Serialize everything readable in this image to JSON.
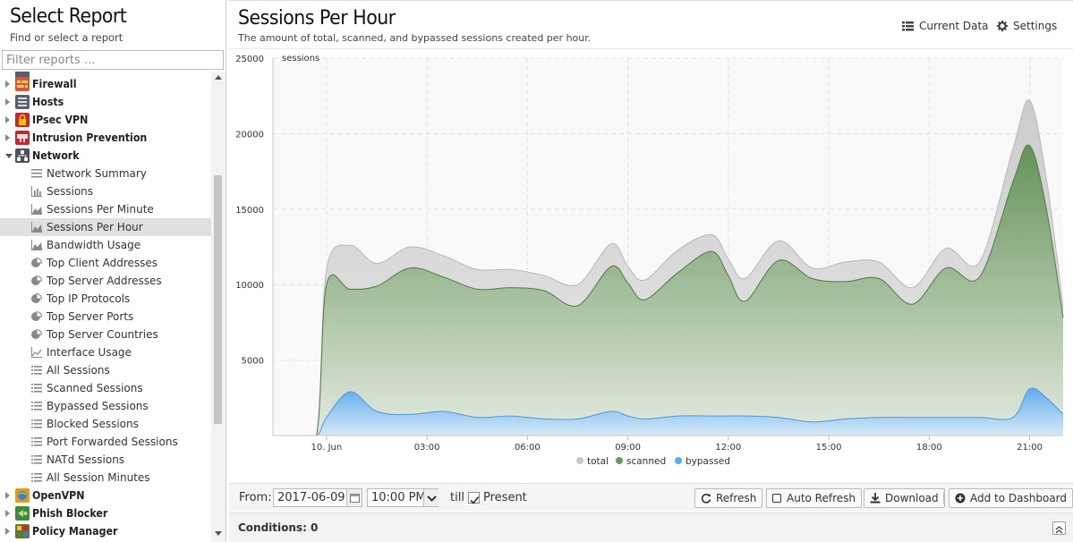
{
  "sidebar": {
    "title": "Select Report",
    "subtitle": "Find or select a report",
    "filter_placeholder": "Filter reports ...",
    "categories": [
      {
        "label": "Firewall",
        "icon": "firewall-icon",
        "color": "#d9582b"
      },
      {
        "label": "Hosts",
        "icon": "hosts-icon",
        "color": "#5b5f6b"
      },
      {
        "label": "IPsec VPN",
        "icon": "ipsec-lock-icon",
        "color": "#c8262e"
      },
      {
        "label": "Intrusion Prevention",
        "icon": "intrusion-prevention-icon",
        "color": "#c8262e"
      },
      {
        "label": "Network",
        "icon": "network-icon",
        "color": "#4a4f5c"
      }
    ],
    "network_reports": [
      {
        "label": "Network Summary",
        "icon": "summary-icon"
      },
      {
        "label": "Sessions",
        "icon": "bar-chart-icon"
      },
      {
        "label": "Sessions Per Minute",
        "icon": "area-chart-icon"
      },
      {
        "label": "Sessions Per Hour",
        "icon": "area-chart-icon",
        "selected": true
      },
      {
        "label": "Bandwidth Usage",
        "icon": "area-chart-icon"
      },
      {
        "label": "Top Client Addresses",
        "icon": "pie-chart-icon"
      },
      {
        "label": "Top Server Addresses",
        "icon": "pie-chart-icon"
      },
      {
        "label": "Top IP Protocols",
        "icon": "pie-chart-icon"
      },
      {
        "label": "Top Server Ports",
        "icon": "pie-chart-icon"
      },
      {
        "label": "Top Server Countries",
        "icon": "pie-chart-icon"
      },
      {
        "label": "Interface Usage",
        "icon": "line-chart-icon"
      },
      {
        "label": "All Sessions",
        "icon": "list-icon"
      },
      {
        "label": "Scanned Sessions",
        "icon": "list-icon"
      },
      {
        "label": "Bypassed Sessions",
        "icon": "list-icon"
      },
      {
        "label": "Blocked Sessions",
        "icon": "list-icon"
      },
      {
        "label": "Port Forwarded Sessions",
        "icon": "list-icon"
      },
      {
        "label": "NATd Sessions",
        "icon": "list-icon"
      },
      {
        "label": "All Session Minutes",
        "icon": "list-icon"
      }
    ],
    "more_categories": [
      {
        "label": "OpenVPN",
        "icon": "openvpn-icon",
        "color": "#e69a1c"
      },
      {
        "label": "Phish Blocker",
        "icon": "phish-blocker-icon",
        "color": "#3f8a3c"
      },
      {
        "label": "Policy Manager",
        "icon": "policy-manager-icon",
        "color": "#7a6d2a"
      }
    ]
  },
  "header": {
    "title": "Sessions Per Hour",
    "description": "The amount of total, scanned, and bypassed sessions created per hour.",
    "current_data_label": "Current Data",
    "settings_label": "Settings"
  },
  "chart_data": {
    "type": "area",
    "ylabel": "sessions",
    "ylim": [
      0,
      25000
    ],
    "yticks": [
      5000,
      10000,
      15000,
      20000,
      25000
    ],
    "xticks": [
      "10. Jun",
      "03:00",
      "06:00",
      "09:00",
      "12:00",
      "15:00",
      "18:00",
      "21:00"
    ],
    "xtick_hours": [
      0,
      3,
      6,
      9,
      12,
      15,
      18,
      21
    ],
    "xlim_hours": [
      -1.6,
      22.0
    ],
    "grid": true,
    "legend_position": "bottom",
    "x_hours": [
      -1.6,
      -1.0,
      -0.3,
      0.0,
      0.7,
      1.5,
      2.5,
      3.5,
      4.5,
      5.5,
      6.5,
      7.5,
      8.5,
      9.0,
      9.5,
      10.5,
      11.5,
      12.0,
      12.5,
      13.5,
      14.5,
      15.5,
      16.5,
      17.5,
      18.5,
      19.5,
      20.5,
      21.0,
      21.5,
      22.0
    ],
    "series": [
      {
        "name": "total",
        "color": "#c8c8c8",
        "values": [
          0,
          0,
          0,
          11000,
          12600,
          11400,
          12500,
          11900,
          11000,
          11000,
          10600,
          10000,
          12700,
          11200,
          10300,
          12300,
          13300,
          11700,
          10400,
          12900,
          11100,
          11500,
          11500,
          9800,
          12400,
          11500,
          19000,
          22200,
          17000,
          8500
        ]
      },
      {
        "name": "scanned",
        "color": "#6b9a5e",
        "values": [
          0,
          0,
          0,
          10000,
          9700,
          9900,
          11100,
          10500,
          9700,
          9800,
          9600,
          8600,
          11200,
          10100,
          9000,
          10800,
          12200,
          10600,
          8900,
          11600,
          10400,
          10200,
          10400,
          8700,
          11100,
          10500,
          16800,
          19200,
          15000,
          7800
        ]
      },
      {
        "name": "bypassed",
        "color": "#5aaaee",
        "values": [
          0,
          0,
          0,
          1200,
          2900,
          1600,
          1400,
          1600,
          1200,
          1300,
          1100,
          1100,
          1600,
          1300,
          1100,
          1300,
          1300,
          1300,
          1300,
          1200,
          900,
          1100,
          1200,
          1200,
          1200,
          1200,
          1200,
          3100,
          2500,
          1400
        ]
      }
    ]
  },
  "toolbar": {
    "from_label": "From:",
    "date_value": "2017-06-09",
    "time_value": "10:00 PM",
    "till_label": "till",
    "present_label": "Present",
    "present_checked": true,
    "refresh_label": "Refresh",
    "auto_refresh_label": "Auto Refresh",
    "download_label": "Download",
    "add_dashboard_label": "Add to Dashboard"
  },
  "conditions": {
    "label": "Conditions: 0"
  }
}
